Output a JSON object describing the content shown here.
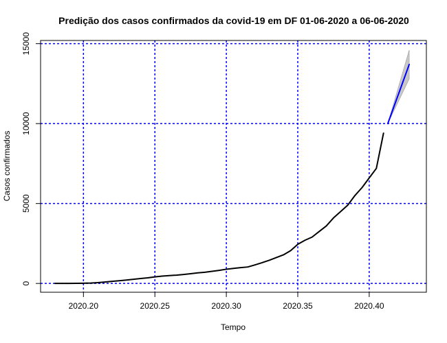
{
  "chart_data": {
    "type": "line",
    "title": "Predição dos casos confirmados da covid-19 em DF 01-06-2020 a 06-06-2020",
    "xlabel": "Tempo",
    "ylabel": "Casos confirmados",
    "xlim": [
      2020.17,
      2020.44
    ],
    "ylim": [
      -550,
      15200
    ],
    "x_ticks": [
      2020.2,
      2020.25,
      2020.3,
      2020.35,
      2020.4
    ],
    "x_tick_labels": [
      "2020.20",
      "2020.25",
      "2020.30",
      "2020.35",
      "2020.40"
    ],
    "y_ticks": [
      0,
      5000,
      10000,
      15000
    ],
    "y_tick_labels": [
      "0",
      "5000",
      "10000",
      "15000"
    ],
    "grid": true,
    "grid_color": "#0000ff",
    "series": [
      {
        "color": "#000000",
        "x": [
          2020.18,
          2020.185,
          2020.19,
          2020.195,
          2020.2,
          2020.205,
          2020.21,
          2020.215,
          2020.22,
          2020.225,
          2020.23,
          2020.235,
          2020.24,
          2020.245,
          2020.25,
          2020.255,
          2020.26,
          2020.265,
          2020.27,
          2020.275,
          2020.28,
          2020.285,
          2020.29,
          2020.295,
          2020.3,
          2020.305,
          2020.31,
          2020.315,
          2020.32,
          2020.325,
          2020.33,
          2020.335,
          2020.34,
          2020.345,
          2020.35,
          2020.355,
          2020.36,
          2020.365,
          2020.37,
          2020.375,
          2020.38,
          2020.385,
          2020.39,
          2020.395,
          2020.4,
          2020.405,
          2020.41
        ],
        "values": [
          0,
          0,
          5,
          10,
          15,
          25,
          50,
          90,
          130,
          170,
          210,
          260,
          310,
          350,
          410,
          460,
          490,
          520,
          560,
          610,
          660,
          700,
          760,
          820,
          890,
          940,
          990,
          1030,
          1160,
          1300,
          1450,
          1620,
          1790,
          2050,
          2450,
          2700,
          2900,
          3250,
          3600,
          4100,
          4500,
          4900,
          5500,
          6000,
          6600,
          7200,
          9400
        ]
      },
      {
        "color": "#0000ff",
        "x": [
          2020.413,
          2020.428
        ],
        "values": [
          10000,
          13700
        ]
      }
    ],
    "forecast_band": {
      "color": "#bebebe",
      "x": [
        2020.413,
        2020.428
      ],
      "lower": [
        10000,
        12800
      ],
      "upper": [
        10000,
        14600
      ]
    }
  }
}
